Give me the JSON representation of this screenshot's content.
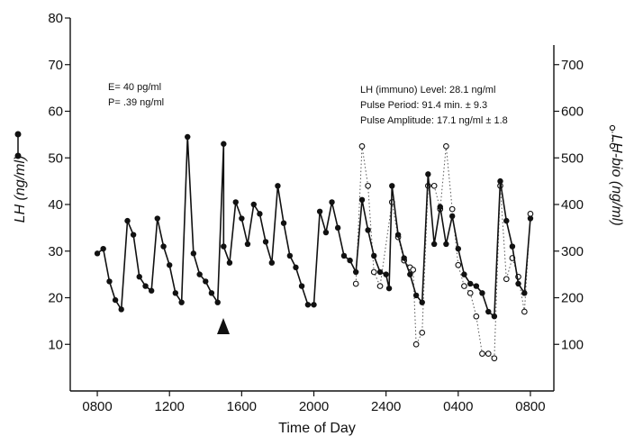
{
  "chart_data": {
    "type": "line",
    "xlabel": "Time of Day",
    "ylabel": "LH (ng/ml)",
    "y2label": "LH-bio (ng/ml)",
    "x_ticks": [
      "0800",
      "1200",
      "1600",
      "2000",
      "2400",
      "0400",
      "0800"
    ],
    "x_tick_hours": [
      8,
      12,
      16,
      20,
      24,
      28,
      32
    ],
    "xlim": [
      6.5,
      33.3
    ],
    "ylim": [
      0,
      80
    ],
    "y_ticks": [
      10,
      20,
      30,
      40,
      50,
      60,
      70,
      80
    ],
    "y2lim": [
      0,
      800
    ],
    "y2_ticks": [
      100,
      200,
      300,
      400,
      500,
      600,
      700
    ],
    "grid": false,
    "annotations": {
      "estradiol": "E= 40 pg/ml",
      "progesterone": "P= .39 ng/ml",
      "level": "LH (immuno) Level: 28.1 ng/ml",
      "period": "Pulse Period: 91.4 min. ± 9.3",
      "amplitude": "Pulse Amplitude: 17.1  ng/ml ± 1.8"
    },
    "marker_hour": 15.3,
    "series": [
      {
        "marker": "filled",
        "axis": "left",
        "points": [
          [
            8.0,
            29.5
          ],
          [
            8.33,
            30.5
          ],
          [
            8.67,
            23.5
          ],
          [
            9.0,
            19.5
          ],
          [
            9.33,
            17.5
          ],
          [
            9.67,
            36.5
          ],
          [
            10.0,
            33.5
          ],
          [
            10.33,
            24.5
          ],
          [
            10.67,
            22.5
          ],
          [
            11.0,
            21.5
          ],
          [
            11.33,
            37.0
          ],
          [
            11.67,
            31.0
          ],
          [
            12.0,
            27.0
          ],
          [
            12.33,
            21.0
          ],
          [
            12.67,
            19.0
          ],
          [
            13.0,
            54.5
          ],
          [
            13.33,
            29.5
          ],
          [
            13.67,
            25.0
          ],
          [
            14.0,
            23.5
          ],
          [
            14.33,
            21.0
          ],
          [
            14.67,
            19.0
          ],
          [
            15.0,
            53.0
          ],
          [
            15.0,
            31.0
          ],
          [
            15.33,
            27.5
          ],
          [
            15.67,
            40.5
          ],
          [
            16.0,
            37.0
          ],
          [
            16.33,
            31.5
          ],
          [
            16.67,
            40.0
          ],
          [
            17.0,
            38.0
          ],
          [
            17.33,
            32.0
          ],
          [
            17.67,
            27.5
          ],
          [
            18.0,
            44.0
          ],
          [
            18.33,
            36.0
          ],
          [
            18.67,
            29.0
          ],
          [
            19.0,
            26.5
          ],
          [
            19.33,
            22.5
          ],
          [
            19.67,
            18.5
          ],
          [
            20.0,
            18.5
          ],
          [
            20.33,
            38.5
          ],
          [
            20.67,
            34.0
          ],
          [
            21.0,
            40.5
          ],
          [
            21.33,
            35.0
          ],
          [
            21.67,
            29.0
          ],
          [
            22.0,
            28.0
          ],
          [
            22.33,
            25.5
          ],
          [
            22.67,
            41.0
          ],
          [
            23.0,
            34.5
          ],
          [
            23.33,
            29.0
          ],
          [
            23.67,
            25.5
          ],
          [
            24.0,
            25.0
          ],
          [
            24.17,
            22.0
          ],
          [
            24.33,
            44.0
          ],
          [
            24.67,
            33.5
          ],
          [
            25.0,
            28.5
          ],
          [
            25.33,
            25.0
          ],
          [
            25.67,
            20.5
          ],
          [
            26.0,
            19.0
          ],
          [
            26.33,
            46.5
          ],
          [
            26.67,
            31.5
          ],
          [
            27.0,
            39.5
          ],
          [
            27.33,
            31.5
          ],
          [
            27.67,
            37.5
          ],
          [
            28.0,
            30.5
          ],
          [
            28.33,
            25.0
          ],
          [
            28.67,
            23.0
          ],
          [
            29.0,
            22.5
          ],
          [
            29.33,
            21.0
          ],
          [
            29.67,
            17.0
          ],
          [
            30.0,
            16.0
          ],
          [
            30.33,
            45.0
          ],
          [
            30.67,
            36.5
          ],
          [
            31.0,
            31.0
          ],
          [
            31.33,
            23.0
          ],
          [
            31.67,
            21.0
          ],
          [
            32.0,
            37.0
          ]
        ]
      },
      {
        "marker": "open",
        "axis": "right",
        "points": [
          [
            22.33,
            230
          ],
          [
            22.67,
            525
          ],
          [
            23.0,
            440
          ],
          [
            23.33,
            255
          ],
          [
            23.67,
            225
          ],
          [
            24.33,
            405
          ],
          [
            24.67,
            330
          ],
          [
            25.0,
            280
          ],
          [
            25.33,
            265
          ],
          [
            25.5,
            260
          ],
          [
            25.67,
            100
          ],
          [
            26.0,
            125
          ],
          [
            26.33,
            440
          ],
          [
            26.67,
            440
          ],
          [
            27.0,
            390
          ],
          [
            27.33,
            525
          ],
          [
            27.67,
            390
          ],
          [
            28.0,
            270
          ],
          [
            28.33,
            225
          ],
          [
            28.67,
            210
          ],
          [
            29.0,
            160
          ],
          [
            29.33,
            80
          ],
          [
            29.67,
            80
          ],
          [
            30.0,
            70
          ],
          [
            30.33,
            440
          ],
          [
            30.67,
            240
          ],
          [
            31.0,
            285
          ],
          [
            31.33,
            245
          ],
          [
            31.67,
            170
          ],
          [
            32.0,
            380
          ]
        ]
      }
    ]
  },
  "legend_glyph": "•",
  "marker_glyph": "▲"
}
